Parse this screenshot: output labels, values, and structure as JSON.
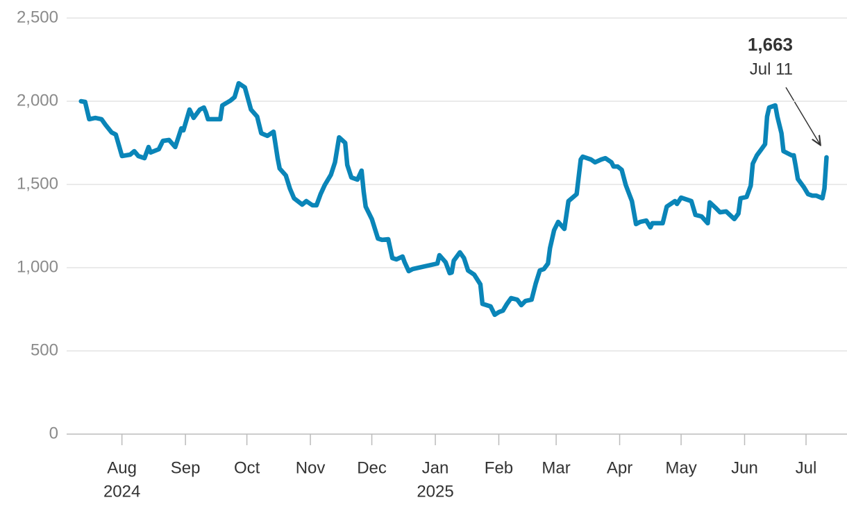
{
  "chart_data": {
    "type": "line",
    "x": [
      11,
      13,
      15,
      18,
      21,
      23,
      26,
      28,
      31,
      35,
      37,
      39,
      42,
      44,
      45,
      49,
      51,
      54,
      57,
      60,
      61,
      64,
      66,
      69,
      71,
      72,
      73,
      77,
      79,
      80,
      84,
      86,
      88,
      91,
      94,
      97,
      99,
      102,
      105,
      107,
      108,
      111,
      113,
      115,
      119,
      121,
      124,
      126,
      128,
      130,
      133,
      135,
      137,
      140,
      141,
      143,
      146,
      148,
      149,
      150,
      153,
      156,
      158,
      161,
      163,
      165,
      168,
      169,
      171,
      173,
      185,
      186,
      189,
      191,
      192,
      193,
      196,
      198,
      200,
      203,
      206,
      207,
      211,
      213,
      215,
      217,
      219,
      221,
      224,
      226,
      228,
      231,
      233,
      235,
      237,
      239,
      240,
      242,
      244,
      247,
      249,
      251,
      253,
      255,
      256,
      260,
      262,
      265,
      267,
      270,
      271,
      273,
      275,
      277,
      280,
      282,
      284,
      287,
      289,
      290,
      295,
      297,
      301,
      302,
      304,
      309,
      311,
      314,
      317,
      318,
      321,
      323,
      326,
      330,
      332,
      333,
      336,
      338,
      339,
      341,
      343,
      345,
      346,
      347,
      350,
      351,
      353,
      354,
      358,
      359,
      360,
      361,
      364,
      366,
      368,
      370,
      373,
      374,
      375
    ],
    "series": [
      {
        "color": "#0a85b8",
        "values": [
          2000,
          1996,
          1892,
          1900,
          1892,
          1858,
          1812,
          1800,
          1671,
          1679,
          1700,
          1671,
          1658,
          1725,
          1692,
          1712,
          1762,
          1767,
          1725,
          1837,
          1825,
          1950,
          1900,
          1950,
          1962,
          1933,
          1892,
          1892,
          1892,
          1975,
          2004,
          2025,
          2108,
          2083,
          1950,
          1908,
          1808,
          1792,
          1817,
          1658,
          1596,
          1554,
          1475,
          1417,
          1379,
          1400,
          1375,
          1375,
          1442,
          1496,
          1558,
          1633,
          1783,
          1750,
          1617,
          1542,
          1529,
          1583,
          1458,
          1367,
          1292,
          1175,
          1167,
          1171,
          1058,
          1050,
          1067,
          1033,
          979,
          992,
          1025,
          1075,
          1033,
          967,
          971,
          1042,
          1092,
          1058,
          983,
          958,
          900,
          783,
          767,
          717,
          733,
          742,
          783,
          817,
          808,
          775,
          800,
          808,
          904,
          983,
          992,
          1025,
          1117,
          1225,
          1275,
          1233,
          1400,
          1421,
          1442,
          1650,
          1667,
          1650,
          1633,
          1650,
          1658,
          1633,
          1608,
          1608,
          1588,
          1496,
          1400,
          1262,
          1275,
          1283,
          1242,
          1267,
          1267,
          1367,
          1400,
          1383,
          1421,
          1400,
          1317,
          1308,
          1267,
          1392,
          1358,
          1333,
          1338,
          1292,
          1325,
          1417,
          1425,
          1492,
          1625,
          1675,
          1708,
          1742,
          1908,
          1962,
          1975,
          1908,
          1808,
          1700,
          1675,
          1675,
          1608,
          1533,
          1483,
          1442,
          1433,
          1433,
          1417,
          1475,
          1663
        ]
      }
    ],
    "xlim": [
      4,
      385
    ],
    "xticks": [
      {
        "value": 31,
        "label": "Aug"
      },
      {
        "value": 62,
        "label": "Sep"
      },
      {
        "value": 92,
        "label": "Oct"
      },
      {
        "value": 123,
        "label": "Nov"
      },
      {
        "value": 153,
        "label": "Dec"
      },
      {
        "value": 184,
        "label": "Jan"
      },
      {
        "value": 215,
        "label": "Feb"
      },
      {
        "value": 243,
        "label": "Mar"
      },
      {
        "value": 274,
        "label": "Apr"
      },
      {
        "value": 304,
        "label": "May"
      },
      {
        "value": 335,
        "label": "Jun"
      },
      {
        "value": 365,
        "label": "Jul"
      }
    ],
    "year_labels": [
      {
        "value": 31,
        "label": "2024"
      },
      {
        "value": 184,
        "label": "2025"
      }
    ],
    "ylim": [
      0,
      2500
    ],
    "yticks": [
      0,
      500,
      {
        "value": 1000,
        "label": "1,000"
      },
      {
        "value": 1500,
        "label": "1,500"
      },
      {
        "value": 2000,
        "label": "2,000"
      },
      {
        "value": 2500,
        "label": "2,500"
      }
    ],
    "grid": true,
    "annotation": {
      "label": "1,663",
      "sublabel": "Jul 11"
    }
  }
}
